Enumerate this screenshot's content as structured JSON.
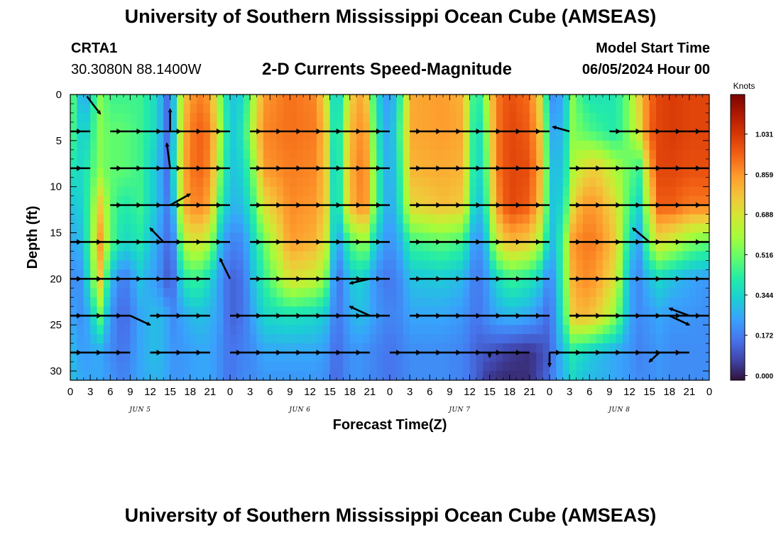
{
  "header": {
    "title": "University of Southern Mississippi Ocean Cube (AMSEAS)",
    "station_id": "CRTA1",
    "coordinates": "30.3080N  88.1400W",
    "plot_title": "2-D Currents Speed-Magnitude",
    "model_start_label": "Model Start Time",
    "model_start_value": "06/05/2024 Hour 00"
  },
  "footer": {
    "title": "University of Southern Mississippi Ocean Cube (AMSEAS)"
  },
  "chart_data": {
    "type": "heatmap",
    "title": "2-D Currents Speed-Magnitude",
    "xlabel": "Forecast Time(Z)",
    "ylabel": "Depth (ft)",
    "x_range_hours": [
      0,
      96
    ],
    "x_ticks": [
      "0",
      "3",
      "6",
      "9",
      "12",
      "15",
      "18",
      "21",
      "0",
      "3",
      "6",
      "9",
      "12",
      "15",
      "18",
      "21",
      "0",
      "3",
      "6",
      "9",
      "12",
      "15",
      "18",
      "21",
      "0",
      "3",
      "6",
      "9",
      "12",
      "15",
      "18",
      "21",
      "0"
    ],
    "day_labels": [
      {
        "label": "JUN 5",
        "hour": 10.5
      },
      {
        "label": "JUN 6",
        "hour": 34.5
      },
      {
        "label": "JUN 7",
        "hour": 58.5
      },
      {
        "label": "JUN 8",
        "hour": 82.5
      }
    ],
    "y_range_ft": [
      0,
      31
    ],
    "y_ticks": [
      0,
      5,
      10,
      15,
      20,
      25,
      30
    ],
    "colorbar": {
      "units": "Knots",
      "ticks": [
        "1.031",
        "0.859",
        "0.688",
        "0.516",
        "0.344",
        "0.172",
        "0.000"
      ],
      "tick_values": [
        1.031,
        0.859,
        0.688,
        0.516,
        0.344,
        0.172,
        0.0
      ],
      "range": [
        -0.02,
        1.2
      ],
      "colors": [
        "#30123b",
        "#4145ab",
        "#4675ed",
        "#39a2fc",
        "#1bcfd4",
        "#24eca6",
        "#61fc6c",
        "#a4fc3b",
        "#d1e834",
        "#f3c63a",
        "#fe9b2d",
        "#f36315",
        "#d93806",
        "#b11901",
        "#7a0402"
      ]
    },
    "band_hours": [
      0,
      2,
      3,
      4.5,
      6,
      8,
      10.5,
      13,
      14.5,
      15.5,
      17,
      19,
      21,
      22.5,
      24,
      26,
      27.5,
      29,
      33,
      37,
      38.5,
      40,
      41,
      43,
      44.5,
      46,
      48,
      50,
      51,
      56,
      59,
      61,
      62.5,
      64,
      66,
      69,
      71,
      72,
      74,
      75.5,
      77,
      79,
      82,
      84,
      85.5,
      87,
      88.5,
      90.5,
      93,
      96
    ],
    "depth_rows_ft": [
      0,
      4,
      8,
      12,
      16,
      20,
      24,
      28,
      31
    ],
    "speed_grid_knots": [
      [
        0.55,
        0.2,
        0.35,
        0.55,
        0.45,
        0.45,
        0.45,
        0.35,
        0.15,
        0.3,
        0.75,
        0.9,
        0.85,
        0.55,
        0.3,
        0.35,
        0.6,
        0.85,
        0.92,
        0.88,
        0.65,
        0.25,
        0.5,
        0.85,
        0.75,
        0.35,
        0.2,
        0.5,
        0.82,
        0.85,
        0.8,
        0.35,
        0.6,
        0.9,
        0.98,
        0.92,
        0.65,
        0.2,
        0.25,
        0.55,
        0.42,
        0.38,
        0.4,
        0.55,
        0.75,
        0.92,
        1.0,
        1.02,
        1.0,
        1.0
      ],
      [
        0.5,
        0.3,
        0.4,
        0.55,
        0.5,
        0.5,
        0.45,
        0.35,
        0.15,
        0.3,
        0.8,
        0.95,
        0.9,
        0.6,
        0.3,
        0.4,
        0.65,
        0.88,
        0.92,
        0.9,
        0.72,
        0.25,
        0.6,
        0.88,
        0.82,
        0.4,
        0.22,
        0.55,
        0.82,
        0.85,
        0.82,
        0.3,
        0.55,
        0.9,
        1.0,
        0.95,
        0.72,
        0.25,
        0.28,
        0.55,
        0.5,
        0.45,
        0.4,
        0.55,
        0.7,
        0.95,
        1.0,
        1.02,
        1.0,
        1.0
      ],
      [
        0.4,
        0.35,
        0.45,
        0.55,
        0.5,
        0.5,
        0.45,
        0.3,
        0.15,
        0.35,
        0.82,
        0.95,
        0.88,
        0.55,
        0.3,
        0.35,
        0.55,
        0.85,
        0.9,
        0.88,
        0.72,
        0.2,
        0.62,
        0.9,
        0.85,
        0.45,
        0.22,
        0.5,
        0.8,
        0.82,
        0.8,
        0.3,
        0.5,
        0.9,
        1.0,
        0.98,
        0.75,
        0.3,
        0.3,
        0.6,
        0.7,
        0.75,
        0.6,
        0.5,
        0.45,
        0.82,
        1.0,
        1.0,
        0.98,
        0.98
      ],
      [
        0.3,
        0.35,
        0.48,
        0.75,
        0.5,
        0.4,
        0.45,
        0.3,
        0.18,
        0.3,
        0.8,
        0.9,
        0.82,
        0.45,
        0.28,
        0.3,
        0.45,
        0.7,
        0.88,
        0.85,
        0.72,
        0.22,
        0.6,
        0.88,
        0.85,
        0.45,
        0.22,
        0.45,
        0.72,
        0.78,
        0.75,
        0.25,
        0.45,
        0.85,
        1.0,
        0.95,
        0.72,
        0.3,
        0.35,
        0.7,
        0.85,
        0.85,
        0.7,
        0.45,
        0.35,
        0.7,
        0.95,
        0.95,
        0.9,
        0.9
      ],
      [
        0.25,
        0.3,
        0.5,
        0.85,
        0.5,
        0.35,
        0.4,
        0.25,
        0.15,
        0.2,
        0.62,
        0.7,
        0.6,
        0.3,
        0.18,
        0.2,
        0.35,
        0.5,
        0.85,
        0.8,
        0.65,
        0.18,
        0.35,
        0.55,
        0.55,
        0.3,
        0.2,
        0.3,
        0.45,
        0.5,
        0.45,
        0.18,
        0.32,
        0.65,
        0.8,
        0.75,
        0.55,
        0.25,
        0.45,
        0.85,
        0.9,
        0.9,
        0.75,
        0.35,
        0.25,
        0.55,
        0.7,
        0.65,
        0.55,
        0.5
      ],
      [
        0.2,
        0.22,
        0.45,
        0.75,
        0.3,
        0.15,
        0.3,
        0.22,
        0.12,
        0.15,
        0.4,
        0.45,
        0.35,
        0.22,
        0.12,
        0.15,
        0.3,
        0.42,
        0.7,
        0.65,
        0.5,
        0.12,
        0.22,
        0.35,
        0.3,
        0.2,
        0.15,
        0.22,
        0.3,
        0.32,
        0.28,
        0.15,
        0.22,
        0.35,
        0.45,
        0.4,
        0.3,
        0.15,
        0.45,
        0.8,
        0.88,
        0.85,
        0.68,
        0.25,
        0.2,
        0.3,
        0.35,
        0.3,
        0.25,
        0.22
      ],
      [
        0.25,
        0.2,
        0.3,
        0.5,
        0.22,
        0.12,
        0.25,
        0.3,
        0.25,
        0.2,
        0.25,
        0.3,
        0.28,
        0.22,
        0.12,
        0.15,
        0.25,
        0.35,
        0.38,
        0.35,
        0.3,
        0.15,
        0.2,
        0.3,
        0.28,
        0.22,
        0.18,
        0.2,
        0.25,
        0.25,
        0.22,
        0.15,
        0.2,
        0.25,
        0.28,
        0.25,
        0.18,
        0.12,
        0.4,
        0.75,
        0.8,
        0.75,
        0.55,
        0.25,
        0.2,
        0.22,
        0.25,
        0.22,
        0.22,
        0.2
      ],
      [
        0.3,
        0.22,
        0.25,
        0.25,
        0.2,
        0.15,
        0.25,
        0.3,
        0.25,
        0.22,
        0.22,
        0.25,
        0.25,
        0.2,
        0.15,
        0.18,
        0.2,
        0.25,
        0.25,
        0.25,
        0.22,
        0.12,
        0.18,
        0.22,
        0.2,
        0.18,
        0.15,
        0.18,
        0.2,
        0.2,
        0.18,
        0.12,
        0.1,
        0.08,
        0.05,
        0.03,
        0.08,
        0.12,
        0.3,
        0.4,
        0.35,
        0.3,
        0.25,
        0.22,
        0.18,
        0.2,
        0.22,
        0.2,
        0.2,
        0.2
      ],
      [
        0.3,
        0.25,
        0.25,
        0.25,
        0.22,
        0.18,
        0.25,
        0.28,
        0.25,
        0.22,
        0.22,
        0.25,
        0.25,
        0.2,
        0.15,
        0.2,
        0.2,
        0.22,
        0.22,
        0.22,
        0.2,
        0.12,
        0.18,
        0.22,
        0.2,
        0.18,
        0.15,
        0.18,
        0.2,
        0.2,
        0.18,
        0.12,
        0.05,
        0.03,
        0.02,
        0.03,
        0.1,
        0.15,
        0.28,
        0.35,
        0.3,
        0.28,
        0.25,
        0.22,
        0.2,
        0.2,
        0.22,
        0.2,
        0.2,
        0.2
      ]
    ],
    "vector_rows_ft": [
      4,
      8,
      12,
      16,
      20,
      24,
      28
    ],
    "vector_segments_hours": [
      [
        [
          0,
          3
        ],
        [
          6,
          24
        ],
        [
          27,
          48
        ],
        [
          51,
          72
        ],
        [
          81,
          96
        ]
      ],
      [
        [
          0,
          3
        ],
        [
          6,
          24
        ],
        [
          27,
          48
        ],
        [
          51,
          72
        ],
        [
          75,
          96
        ]
      ],
      [
        [
          6,
          24
        ],
        [
          27,
          48
        ],
        [
          51,
          72
        ],
        [
          75,
          96
        ]
      ],
      [
        [
          0,
          24
        ],
        [
          27,
          48
        ],
        [
          51,
          72
        ],
        [
          75,
          96
        ]
      ],
      [
        [
          0,
          21
        ],
        [
          27,
          48
        ],
        [
          51,
          72
        ],
        [
          75,
          96
        ]
      ],
      [
        [
          0,
          9
        ],
        [
          12,
          21
        ],
        [
          24,
          48
        ],
        [
          51,
          72
        ],
        [
          75,
          96
        ]
      ],
      [
        [
          0,
          9
        ],
        [
          12,
          21
        ],
        [
          24,
          45
        ],
        [
          48,
          69
        ],
        [
          72,
          93
        ]
      ]
    ],
    "extra_arrows": [
      {
        "from": [
          2.5,
          0.2
        ],
        "to": [
          4.5,
          2.1
        ]
      },
      {
        "from": [
          15,
          4.0
        ],
        "to": [
          15,
          1.6
        ]
      },
      {
        "from": [
          15,
          8.0
        ],
        "to": [
          14.5,
          5.3
        ]
      },
      {
        "from": [
          15,
          12.0
        ],
        "to": [
          18,
          10.8
        ]
      },
      {
        "from": [
          14,
          16.0
        ],
        "to": [
          12,
          14.5
        ]
      },
      {
        "from": [
          24,
          20.0
        ],
        "to": [
          22.5,
          17.8
        ]
      },
      {
        "from": [
          9,
          24.0
        ],
        "to": [
          12,
          25.0
        ]
      },
      {
        "from": [
          45,
          20.0
        ],
        "to": [
          42,
          20.5
        ]
      },
      {
        "from": [
          45,
          24.0
        ],
        "to": [
          42,
          23.0
        ]
      },
      {
        "from": [
          63,
          28.0
        ],
        "to": [
          63,
          28.5
        ]
      },
      {
        "from": [
          75,
          4.0
        ],
        "to": [
          72.5,
          3.5
        ]
      },
      {
        "from": [
          87,
          16.0
        ],
        "to": [
          84.5,
          14.5
        ]
      },
      {
        "from": [
          90,
          24.0
        ],
        "to": [
          93,
          25.0
        ]
      },
      {
        "from": [
          93,
          24.0
        ],
        "to": [
          90,
          23.2
        ]
      },
      {
        "from": [
          88.5,
          28.0
        ],
        "to": [
          87,
          29.0
        ]
      },
      {
        "from": [
          72,
          28.0
        ],
        "to": [
          72,
          29.5
        ]
      }
    ]
  }
}
